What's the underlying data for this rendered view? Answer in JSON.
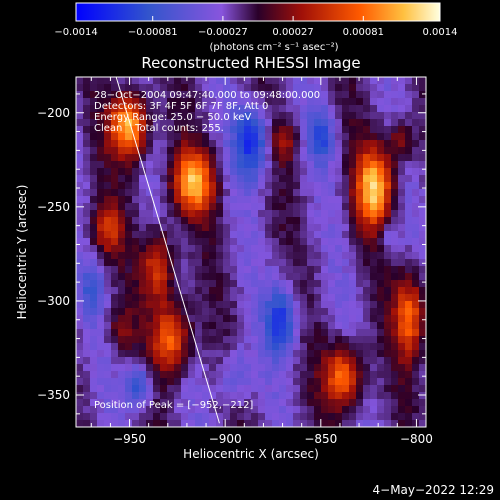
{
  "chart_data": {
    "type": "heatmap",
    "title": "Reconstructed RHESSI Image",
    "xlabel": "Heliocentric X (arcsec)",
    "ylabel": "Heliocentric Y (arcsec)",
    "xlim": [
      -978,
      -795
    ],
    "ylim": [
      -367,
      -181
    ],
    "xticks": [
      -950,
      -900,
      -850,
      -800
    ],
    "xtick_labels": [
      "−950",
      "−900",
      "−850",
      "−800"
    ],
    "yticks": [
      -200,
      -250,
      -300,
      -350
    ],
    "ytick_labels": [
      "−200",
      "−250",
      "−300",
      "−350"
    ],
    "colorbar": {
      "min": -0.0014,
      "max": 0.0014,
      "ticks": [
        -0.0014,
        -0.00081,
        -0.00027,
        0.00027,
        0.00081,
        0.0014
      ],
      "tick_labels": [
        "−0.0014",
        "−0.00081",
        "−0.00027",
        "0.00027",
        "0.00081",
        "0.0014"
      ],
      "unit_label": "(photons cm⁻² s⁻¹ asec⁻²)"
    },
    "annotations": [
      "28−Oct−2004 09:47:40.000 to 09:48:00.000",
      "Detectors: 3F 4F 5F 6F 7F 8F, Att 0",
      "Energy Range: 25.0 − 50.0 keV",
      "Clean    Total counts: 255."
    ],
    "peak_label": "Position of Peak = [−952,−212]",
    "peak": [
      -952,
      -212
    ],
    "limb_line": [
      [
        -957,
        -181
      ],
      [
        -903,
        -365
      ]
    ],
    "hot_sources": [
      {
        "x": -950,
        "y": -207,
        "sx": 7,
        "sy": 12,
        "value": 0.0014
      },
      {
        "x": -917,
        "y": -237,
        "sx": 8,
        "sy": 12,
        "value": 0.0012
      },
      {
        "x": -935,
        "y": -282,
        "sx": 6,
        "sy": 14,
        "value": 0.0009
      },
      {
        "x": -928,
        "y": -320,
        "sx": 7,
        "sy": 13,
        "value": 0.0011
      },
      {
        "x": -962,
        "y": -262,
        "sx": 6,
        "sy": 10,
        "value": 0.0007
      },
      {
        "x": -822,
        "y": -240,
        "sx": 7,
        "sy": 15,
        "value": 0.0013
      },
      {
        "x": -838,
        "y": -340,
        "sx": 7,
        "sy": 12,
        "value": 0.0011
      },
      {
        "x": -803,
        "y": -308,
        "sx": 6,
        "sy": 16,
        "value": 0.001
      },
      {
        "x": -808,
        "y": -215,
        "sx": 5,
        "sy": 8,
        "value": 0.0006
      },
      {
        "x": -870,
        "y": -215,
        "sx": 6,
        "sy": 8,
        "value": 0.0005
      },
      {
        "x": -955,
        "y": -315,
        "sx": 5,
        "sy": 8,
        "value": 0.0004
      }
    ],
    "cold_sources": [
      {
        "x": -885,
        "y": -215,
        "sx": 7,
        "sy": 14,
        "value": -0.0009
      },
      {
        "x": -870,
        "y": -310,
        "sx": 6,
        "sy": 14,
        "value": -0.0008
      },
      {
        "x": -945,
        "y": -345,
        "sx": 5,
        "sy": 8,
        "value": -0.0008
      },
      {
        "x": -850,
        "y": -212,
        "sx": 5,
        "sy": 10,
        "value": -0.0006
      },
      {
        "x": -895,
        "y": -340,
        "sx": 6,
        "sy": 12,
        "value": -0.0005
      },
      {
        "x": -970,
        "y": -295,
        "sx": 5,
        "sy": 10,
        "value": -0.0004
      },
      {
        "x": -815,
        "y": -265,
        "sx": 4,
        "sy": 8,
        "value": -0.0004
      }
    ]
  },
  "footer": {
    "date": "4−May−2022 12:29"
  }
}
